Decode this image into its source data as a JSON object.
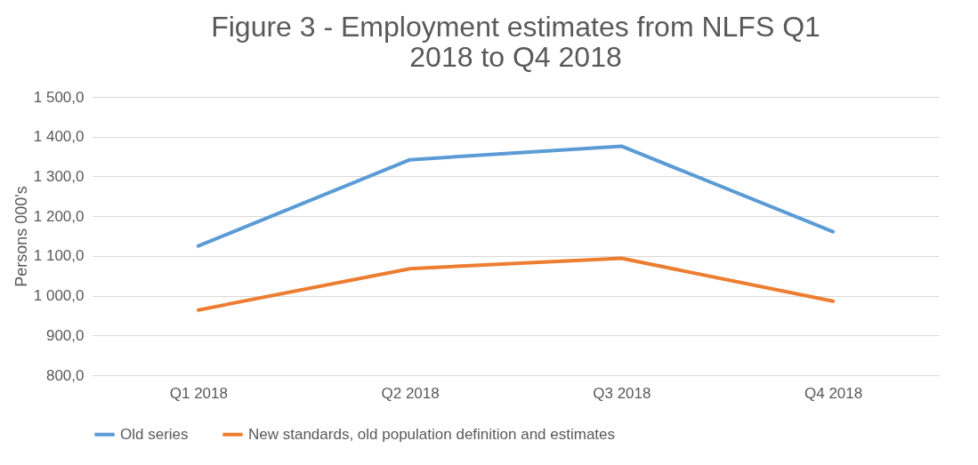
{
  "chart_data": {
    "type": "line",
    "title": "Figure 3 - Employment estimates from NLFS Q1 2018 to Q4 2018",
    "ylabel": "Persons 000's",
    "categories": [
      "Q1 2018",
      "Q2 2018",
      "Q3 2018",
      "Q4 2018"
    ],
    "series": [
      {
        "name": "Old series",
        "color": "#5b9bd5",
        "values": [
          1125,
          1342,
          1376,
          1161
        ]
      },
      {
        "name": "New standards, old population definition and estimates",
        "color": "#ed7d31",
        "values": [
          964,
          1068,
          1094,
          986
        ]
      }
    ],
    "ylim": [
      800,
      1500
    ],
    "yticks": [
      {
        "value": 800,
        "label": "800,0"
      },
      {
        "value": 900,
        "label": "900,0"
      },
      {
        "value": 1000,
        "label": "1 000,0"
      },
      {
        "value": 1100,
        "label": "1 100,0"
      },
      {
        "value": 1200,
        "label": "1 200,0"
      },
      {
        "value": 1300,
        "label": "1 300,0"
      },
      {
        "value": 1400,
        "label": "1 400,0"
      },
      {
        "value": 1500,
        "label": "1 500,0"
      }
    ],
    "grid": "y",
    "legend": "bottom",
    "marker": "none",
    "line_style": "solid"
  }
}
